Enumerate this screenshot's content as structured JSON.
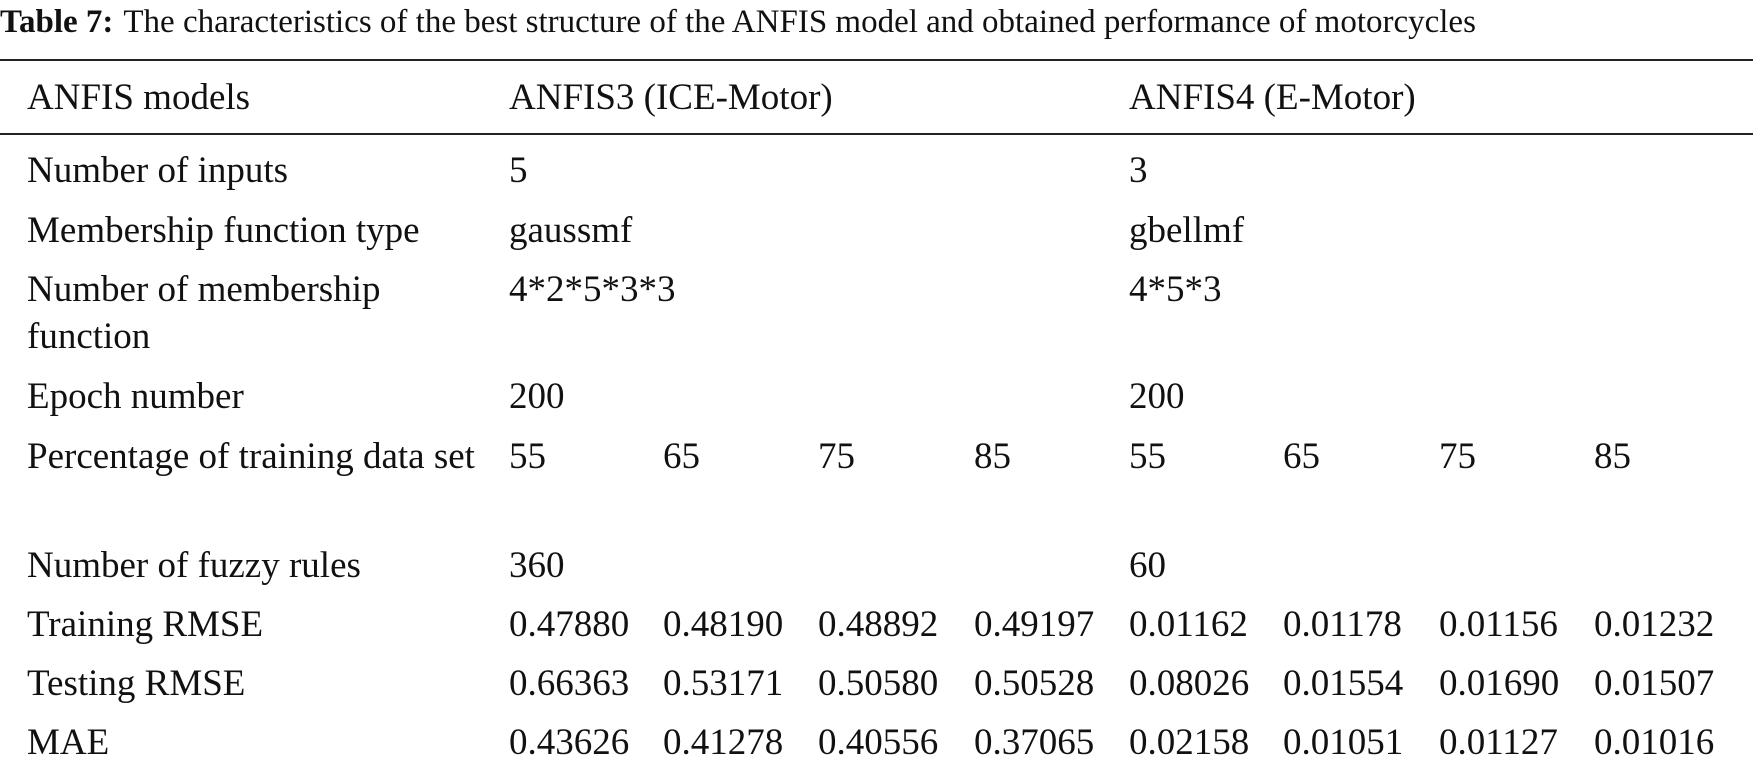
{
  "caption": {
    "label": "Table 7:",
    "text": "The characteristics of the best structure of the ANFIS model and obtained performance of motorcycles"
  },
  "table": {
    "header": [
      "ANFIS models",
      "ANFIS3 (ICE-Motor)",
      "ANFIS4 (E-Motor)"
    ],
    "rows": [
      {
        "label": "Number of inputs",
        "values": [
          "5",
          "3"
        ]
      },
      {
        "label": "Membership function type",
        "values": [
          "gaussmf",
          "gbellmf"
        ]
      },
      {
        "label": "Number of membership function",
        "values": [
          "4*2*5*3*3",
          "4*5*3"
        ]
      },
      {
        "label": "Epoch number",
        "values": [
          "200",
          "200"
        ]
      },
      {
        "label": "Percentage of training data set",
        "values": [
          "55",
          "65",
          "75",
          "85",
          "55",
          "65",
          "75",
          "85"
        ]
      },
      {
        "label": "Number of fuzzy rules",
        "values": [
          "360",
          "60"
        ]
      },
      {
        "label": "Training RMSE",
        "values": [
          "0.47880",
          "0.48190",
          "0.48892",
          "0.49197",
          "0.01162",
          "0.01178",
          "0.01156",
          "0.01232"
        ]
      },
      {
        "label": "Testing RMSE",
        "values": [
          "0.66363",
          "0.53171",
          "0.50580",
          "0.50528",
          "0.08026",
          "0.01554",
          "0.01690",
          "0.01507"
        ]
      },
      {
        "label": "MAE",
        "values": [
          "0.43626",
          "0.41278",
          "0.40556",
          "0.37065",
          "0.02158",
          "0.01051",
          "0.01127",
          "0.01016"
        ]
      }
    ]
  }
}
